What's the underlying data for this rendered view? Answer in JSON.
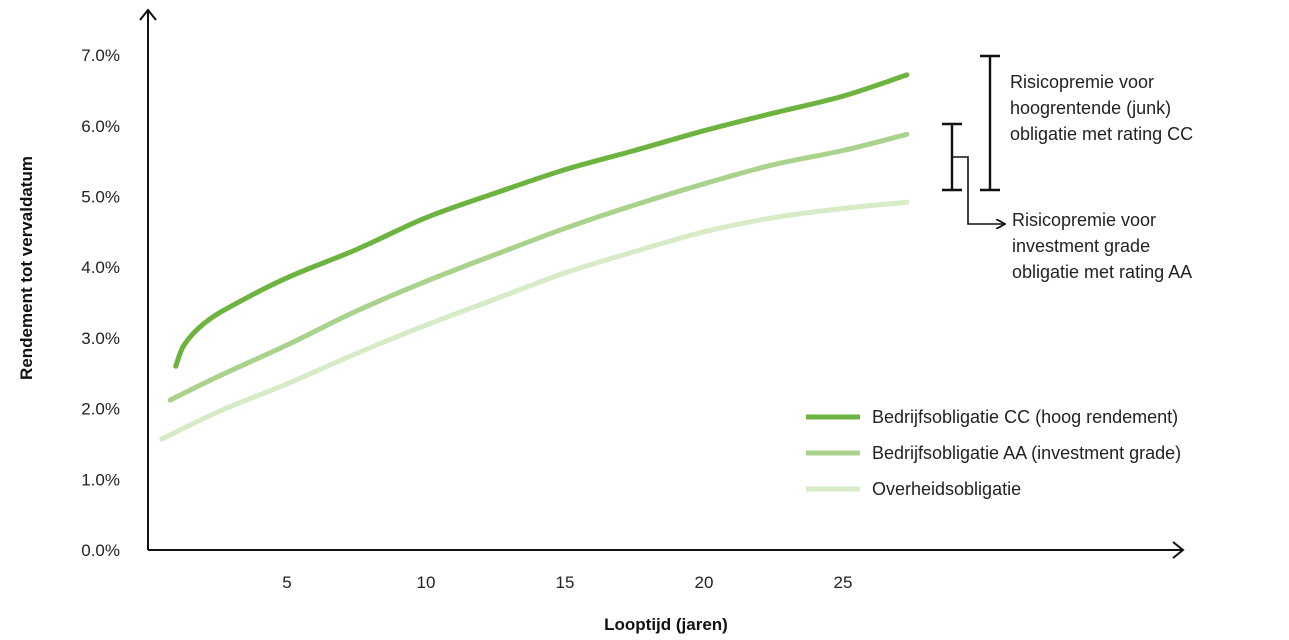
{
  "chart_data": {
    "type": "line",
    "title": "",
    "xlabel": "Looptijd (jaren)",
    "ylabel": "Rendement tot vervaldatum",
    "xlim": [
      0,
      37
    ],
    "ylim": [
      0,
      7.5
    ],
    "x_ticks": [
      5,
      10,
      15,
      20,
      25
    ],
    "x_tick_labels": [
      "5",
      "10",
      "15",
      "20",
      "25"
    ],
    "y_ticks": [
      0,
      1,
      2,
      3,
      4,
      5,
      6,
      7
    ],
    "y_tick_labels": [
      "0.0%",
      "1.0%",
      "2.0%",
      "3.0%",
      "4.0%",
      "5.0%",
      "6.0%",
      "7.0%"
    ],
    "grid": false,
    "legend_position": "bottom-right",
    "series": [
      {
        "name": "Bedrijfsobligatie CC (hoog rendement)",
        "color": "#6db33f",
        "points": [
          [
            1,
            2.6
          ],
          [
            1.3,
            2.9
          ],
          [
            2,
            3.2
          ],
          [
            3,
            3.45
          ],
          [
            5,
            3.85
          ],
          [
            7.5,
            4.25
          ],
          [
            10,
            4.7
          ],
          [
            12.5,
            5.05
          ],
          [
            15,
            5.38
          ],
          [
            17.5,
            5.65
          ],
          [
            20,
            5.93
          ],
          [
            22.5,
            6.18
          ],
          [
            25,
            6.42
          ],
          [
            27.3,
            6.72
          ]
        ]
      },
      {
        "name": "Bedrijfsobligatie AA (investment grade)",
        "color": "#a9d38c",
        "points": [
          [
            0.8,
            2.12
          ],
          [
            2.5,
            2.45
          ],
          [
            5,
            2.9
          ],
          [
            7.5,
            3.38
          ],
          [
            10,
            3.8
          ],
          [
            12.5,
            4.18
          ],
          [
            15,
            4.55
          ],
          [
            17.5,
            4.88
          ],
          [
            20,
            5.18
          ],
          [
            22.5,
            5.45
          ],
          [
            25,
            5.65
          ],
          [
            27.3,
            5.88
          ]
        ]
      },
      {
        "name": "Overheidsobligatie",
        "color": "#d6ebc6",
        "points": [
          [
            0.5,
            1.57
          ],
          [
            2.5,
            1.95
          ],
          [
            5,
            2.35
          ],
          [
            7.5,
            2.78
          ],
          [
            10,
            3.18
          ],
          [
            12.5,
            3.55
          ],
          [
            15,
            3.92
          ],
          [
            17.5,
            4.22
          ],
          [
            20,
            4.5
          ],
          [
            22.5,
            4.7
          ],
          [
            25,
            4.83
          ],
          [
            27.3,
            4.92
          ]
        ]
      }
    ],
    "annotations": [
      {
        "text_lines": [
          "Risicopremie voor",
          "hoogrentende (junk)",
          "obligatie met rating CC"
        ],
        "y_top": 6.9,
        "y_bottom": 4.95
      },
      {
        "text_lines": [
          "Risicopremie voor",
          "investment grade",
          "obligatie met rating AA"
        ],
        "y_top": 5.92,
        "y_bottom": 4.95
      }
    ]
  }
}
